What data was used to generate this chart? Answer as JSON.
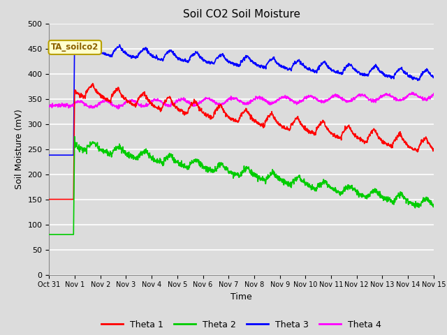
{
  "title": "Soil CO2 Soil Moisture",
  "xlabel": "Time",
  "ylabel": "Soil Moisture (mV)",
  "annotation": "TA_soilco2",
  "ylim": [
    0,
    500
  ],
  "legend_labels": [
    "Theta 1",
    "Theta 2",
    "Theta 3",
    "Theta 4"
  ],
  "colors": {
    "theta1": "#ff0000",
    "theta2": "#00cc00",
    "theta3": "#0000ff",
    "theta4": "#ff00ff"
  },
  "background_color": "#dcdcdc",
  "plot_bg_color": "#dcdcdc",
  "tick_labels": [
    "Oct 31",
    "Nov 1",
    "Nov 2",
    "Nov 3",
    "Nov 4",
    "Nov 5",
    "Nov 6",
    "Nov 7",
    "Nov 8",
    "Nov 9",
    "Nov 10",
    "Nov 11",
    "Nov 12",
    "Nov 13",
    "Nov 14",
    "Nov 15"
  ],
  "linewidth": 1.2
}
